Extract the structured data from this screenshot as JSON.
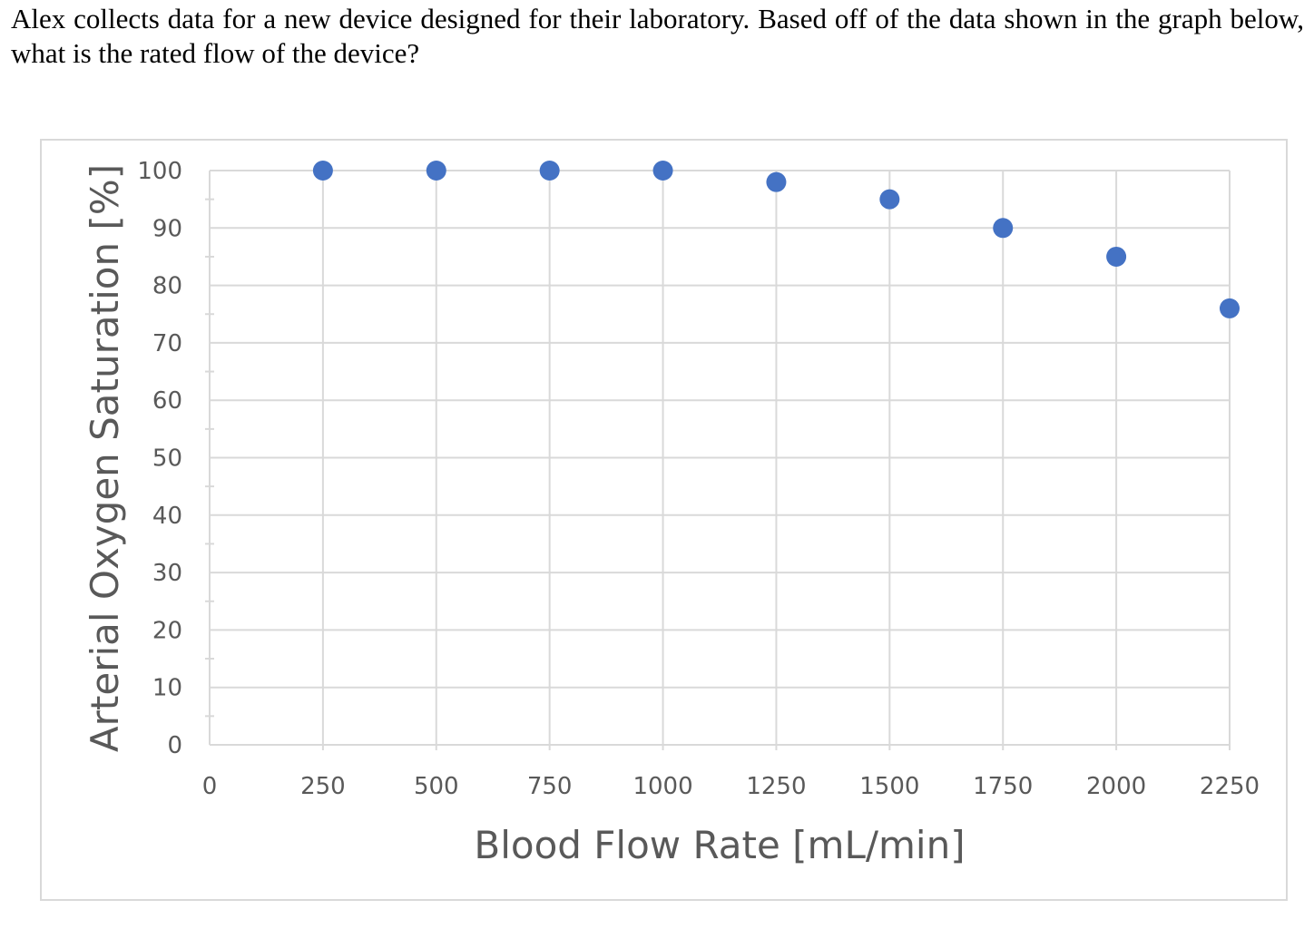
{
  "question": {
    "text": "Alex collects data for a new device designed for their laboratory. Based off of the data shown in the graph below, what is the rated flow of the device?"
  },
  "colors": {
    "marker": "#4472c4",
    "grid": "#d9d9d9",
    "text": "#595959"
  },
  "chart_data": {
    "type": "scatter",
    "title": "",
    "xlabel": "Blood Flow Rate [mL/min]",
    "ylabel": "Arterial Oxygen Saturation [%]",
    "xlim": [
      0,
      2250
    ],
    "ylim": [
      0,
      100
    ],
    "x_ticks": [
      "0",
      "250",
      "500",
      "750",
      "1000",
      "1250",
      "1500",
      "1750",
      "2000",
      "2250"
    ],
    "y_ticks": [
      "0",
      "10",
      "20",
      "30",
      "40",
      "50",
      "60",
      "70",
      "80",
      "90",
      "100"
    ],
    "grid": true,
    "legend": "none",
    "series": [
      {
        "name": "Arterial Oxygen Saturation",
        "x": [
          250,
          500,
          750,
          1000,
          1250,
          1500,
          1750,
          2000,
          2250
        ],
        "y": [
          100,
          100,
          100,
          100,
          98,
          95,
          90,
          85,
          76
        ]
      }
    ]
  }
}
